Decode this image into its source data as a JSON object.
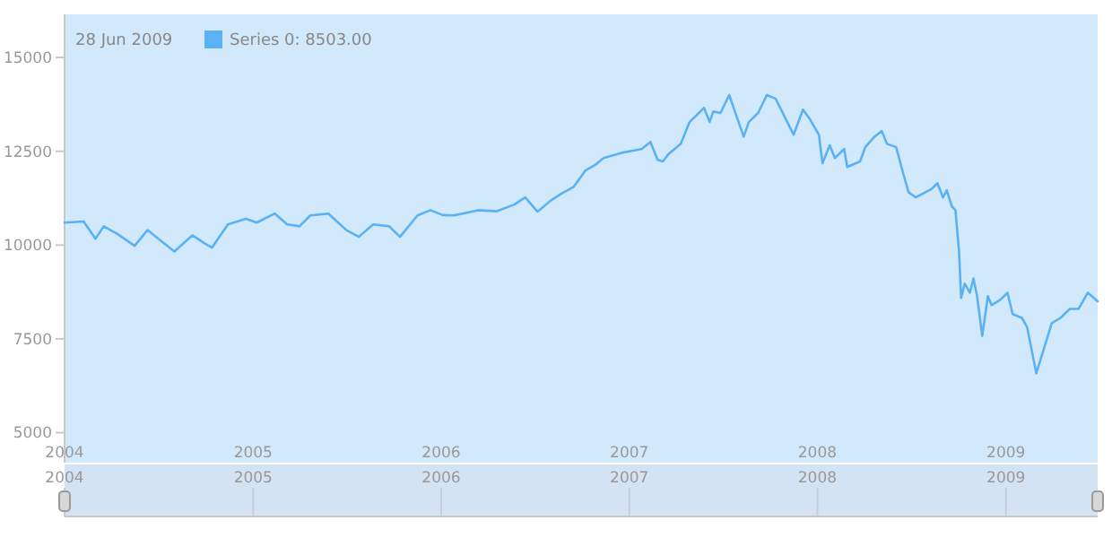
{
  "chart_data": {
    "type": "line",
    "annotations": [
      "28 Jun 2009"
    ],
    "x": [
      "2004-01-01",
      "2004-02-07",
      "2004-03-01",
      "2004-03-17",
      "2004-04-11",
      "2004-05-16",
      "2004-06-10",
      "2004-07-01",
      "2004-08-01",
      "2004-09-05",
      "2004-09-26",
      "2004-10-13",
      "2004-11-13",
      "2004-12-18",
      "2005-01-08",
      "2005-02-12",
      "2005-03-08",
      "2005-04-01",
      "2005-04-22",
      "2005-05-27",
      "2005-07-01",
      "2005-07-25",
      "2005-08-22",
      "2005-09-22",
      "2005-10-13",
      "2005-11-16",
      "2005-12-11",
      "2006-01-04",
      "2006-01-25",
      "2006-03-14",
      "2006-04-18",
      "2006-05-23",
      "2006-06-13",
      "2006-07-07",
      "2006-07-31",
      "2006-08-21",
      "2006-09-15",
      "2006-10-08",
      "2006-10-26",
      "2006-11-12",
      "2006-12-17",
      "2007-01-25",
      "2007-02-11",
      "2007-02-25",
      "2007-03-07",
      "2007-03-18",
      "2007-04-11",
      "2007-04-28",
      "2007-05-16",
      "2007-05-26",
      "2007-06-06",
      "2007-06-13",
      "2007-06-27",
      "2007-07-14",
      "2007-07-25",
      "2007-08-11",
      "2007-08-21",
      "2007-09-08",
      "2007-09-25",
      "2007-10-12",
      "2007-11-16",
      "2007-12-04",
      "2007-12-17",
      "2008-01-04",
      "2008-01-11",
      "2008-01-25",
      "2008-02-04",
      "2008-02-22",
      "2008-02-28",
      "2008-03-24",
      "2008-04-03",
      "2008-04-21",
      "2008-05-05",
      "2008-05-15",
      "2008-06-02",
      "2008-06-16",
      "2008-06-26",
      "2008-07-10",
      "2008-08-10",
      "2008-08-21",
      "2008-09-01",
      "2008-09-08",
      "2008-09-18",
      "2008-09-25",
      "2008-10-02",
      "2008-10-06",
      "2008-10-13",
      "2008-10-23",
      "2008-10-30",
      "2008-11-06",
      "2008-11-16",
      "2008-11-27",
      "2008-12-04",
      "2008-12-21",
      "2009-01-04",
      "2009-01-14",
      "2009-02-01",
      "2009-02-11",
      "2009-03-01",
      "2009-03-17",
      "2009-03-31",
      "2009-04-17",
      "2009-05-05",
      "2009-05-22",
      "2009-06-09",
      "2009-06-28"
    ],
    "series": [
      {
        "name": "Series 0: 8503.00",
        "color": "#5ab2f2",
        "values": [
          10600,
          10630,
          10170,
          10500,
          10310,
          9980,
          10400,
          10170,
          9830,
          10260,
          10070,
          9930,
          10550,
          10700,
          10600,
          10840,
          10550,
          10500,
          10790,
          10840,
          10400,
          10220,
          10550,
          10500,
          10220,
          10790,
          10930,
          10800,
          10790,
          10930,
          10900,
          11080,
          11270,
          10890,
          11170,
          11360,
          11550,
          11990,
          12130,
          12320,
          12460,
          12560,
          12750,
          12270,
          12230,
          12420,
          12700,
          13280,
          13520,
          13660,
          13280,
          13560,
          13520,
          14000,
          13560,
          12890,
          13280,
          13520,
          14000,
          13900,
          12940,
          13610,
          13370,
          12940,
          12180,
          12660,
          12320,
          12560,
          12080,
          12230,
          12610,
          12890,
          13040,
          12700,
          12610,
          11890,
          11410,
          11270,
          11500,
          11650,
          11270,
          11460,
          11030,
          10930,
          9830,
          8590,
          8970,
          8730,
          9110,
          8640,
          7580,
          8640,
          8400,
          8540,
          8730,
          8160,
          8060,
          7820,
          6580,
          7300,
          7920,
          8060,
          8300,
          8300,
          8730,
          8503
        ]
      }
    ],
    "xlim": [
      "2004-01-01",
      "2009-06-28"
    ],
    "xticks": [
      {
        "value": "2004-01-01",
        "label": "2004"
      },
      {
        "value": "2005-01-01",
        "label": "2005"
      },
      {
        "value": "2006-01-01",
        "label": "2006"
      },
      {
        "value": "2007-01-01",
        "label": "2007"
      },
      {
        "value": "2008-01-01",
        "label": "2008"
      },
      {
        "value": "2009-01-01",
        "label": "2009"
      }
    ],
    "x2lim": [
      "2004-01-01",
      "2009-06-28"
    ],
    "x2ticks": [
      {
        "value": "2004-01-01",
        "label": "2004"
      },
      {
        "value": "2005-01-01",
        "label": "2005"
      },
      {
        "value": "2006-01-01",
        "label": "2006"
      },
      {
        "value": "2007-01-01",
        "label": "2007"
      },
      {
        "value": "2008-01-01",
        "label": "2008"
      },
      {
        "value": "2009-01-01",
        "label": "2009"
      }
    ],
    "ylim": [
      4200,
      16150
    ],
    "yticks": [
      5000,
      7500,
      10000,
      12500,
      15000
    ],
    "grid": false,
    "legend": "top left",
    "marker": "none",
    "line_style": "solid"
  }
}
